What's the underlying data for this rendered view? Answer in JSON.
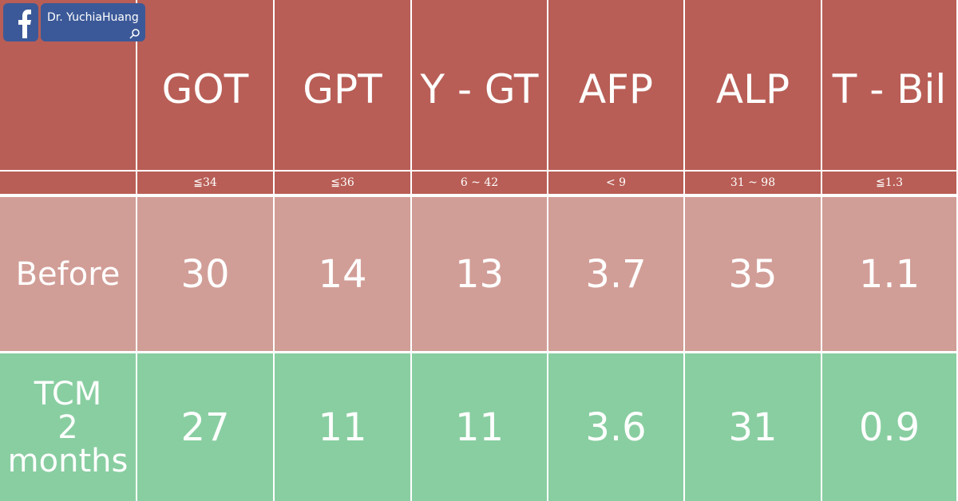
{
  "header": {
    "logo_text": "Dr. YuchiaHuang"
  },
  "table": {
    "columns": [
      "GOT",
      "GPT",
      "Y - GT",
      "AFP",
      "ALP",
      "T - Bil"
    ],
    "reference": [
      "≦34",
      "≦36",
      "6 ~ 42",
      "< 9",
      "31 ~ 98",
      "≦1.3"
    ],
    "rows": [
      {
        "label": [
          "Before"
        ],
        "values": [
          "30",
          "14",
          "13",
          "3.7",
          "35",
          "1.1"
        ]
      },
      {
        "label": [
          "TCM",
          "2",
          "months"
        ],
        "values": [
          "27",
          "11",
          "11",
          "3.6",
          "31",
          "0.9"
        ]
      }
    ]
  }
}
